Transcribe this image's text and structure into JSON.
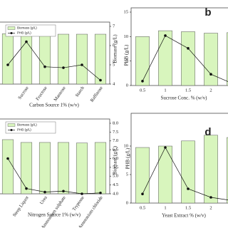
{
  "chart_data": [
    {
      "type": "bar_line",
      "xlabel": "Carbon Source 1% (w/v)",
      "y2label": "PHB (g/L)",
      "legend": "upper left",
      "categories": [
        null,
        "Sucrose",
        "Fructose",
        "Mannose",
        "Starch",
        "Raffinose"
      ],
      "rotate_labels": true,
      "ylim": [
        0,
        12.5
      ],
      "y2lim": [
        4,
        7
      ],
      "y2ticks": [
        4,
        5,
        6,
        7
      ],
      "series": [
        {
          "name": "Biomass (g/L)",
          "color": "#d8f5bd",
          "values": [
            10.9,
            11.5,
            10.8,
            10.8,
            10.8,
            10.8
          ]
        },
        {
          "name": "PHB (g/L)",
          "color": "#111111",
          "axis": "y2",
          "values": [
            5.0,
            6.2,
            4.9,
            4.85,
            5.0,
            4.2
          ]
        }
      ]
    },
    {
      "type": "bar_line",
      "letter": "b",
      "xlabel": "Sucrose Conc. % (w/v)",
      "ylabel": "Biomass (g/L)",
      "categories": [
        "0.5",
        "1",
        "1.5",
        "2",
        null
      ],
      "rotate_labels": false,
      "ylim": [
        0,
        15
      ],
      "yticks": [
        0,
        5,
        10,
        15
      ],
      "series": [
        {
          "name": "Biomass (g/L)",
          "color": "#d8f5bd",
          "values": [
            10,
            11.2,
            11,
            10.7,
            10.8
          ]
        },
        {
          "name": "PHB (g/L)",
          "color": "#111111",
          "values": [
            0.9,
            10.2,
            7.6,
            2.3,
            0.3
          ]
        }
      ]
    },
    {
      "type": "bar_line",
      "xlabel": "Nitrogen Source 1% (w/v)",
      "y2label": "PHB (g/L)",
      "legend": "upper left",
      "categories": [
        null,
        "Steep Liquor",
        "Urea",
        "Ammonium sulphate",
        "Tryptone",
        "Ammonium chloride"
      ],
      "rotate_labels": true,
      "ylim": [
        0,
        12.5
      ],
      "y2lim": [
        4,
        8
      ],
      "y2ticks": [
        {
          "value": 4,
          "label": "4.0"
        },
        4.5,
        {
          "value": 5,
          "label": "5.0"
        },
        5.5,
        {
          "value": 6,
          "label": "6.0"
        },
        6.5,
        {
          "value": 7,
          "label": "7.0"
        },
        7.5,
        {
          "value": 8,
          "label": "8.0"
        }
      ],
      "series": [
        {
          "name": "Biomass (g/L)",
          "color": "#d8f5bd",
          "values": [
            9.6,
            9.1,
            9.1,
            9.1,
            9.0,
            9.1
          ]
        },
        {
          "name": "PHB (g/L)",
          "color": "#111111",
          "axis": "y2",
          "values": [
            6.0,
            4.3,
            4.1,
            4.15,
            4.0,
            4.05
          ]
        }
      ]
    },
    {
      "type": "bar_line",
      "letter": "d",
      "xlabel": "Yeast Extract % (w/v)",
      "ylabel": "Biomass (g/L)",
      "categories": [
        "0.5",
        "1",
        "1.5",
        "2",
        null
      ],
      "rotate_labels": false,
      "ylim": [
        0,
        15
      ],
      "yticks": [
        0,
        5,
        10
      ],
      "series": [
        {
          "name": "Biomass (g/L)",
          "color": "#d8f5bd",
          "values": [
            9.75,
            10,
            10.9,
            11.9,
            11.5
          ]
        },
        {
          "name": "PHB (g/L)",
          "color": "#111111",
          "values": [
            1.6,
            9.75,
            2.5,
            1.0,
            0.4
          ]
        }
      ]
    }
  ]
}
